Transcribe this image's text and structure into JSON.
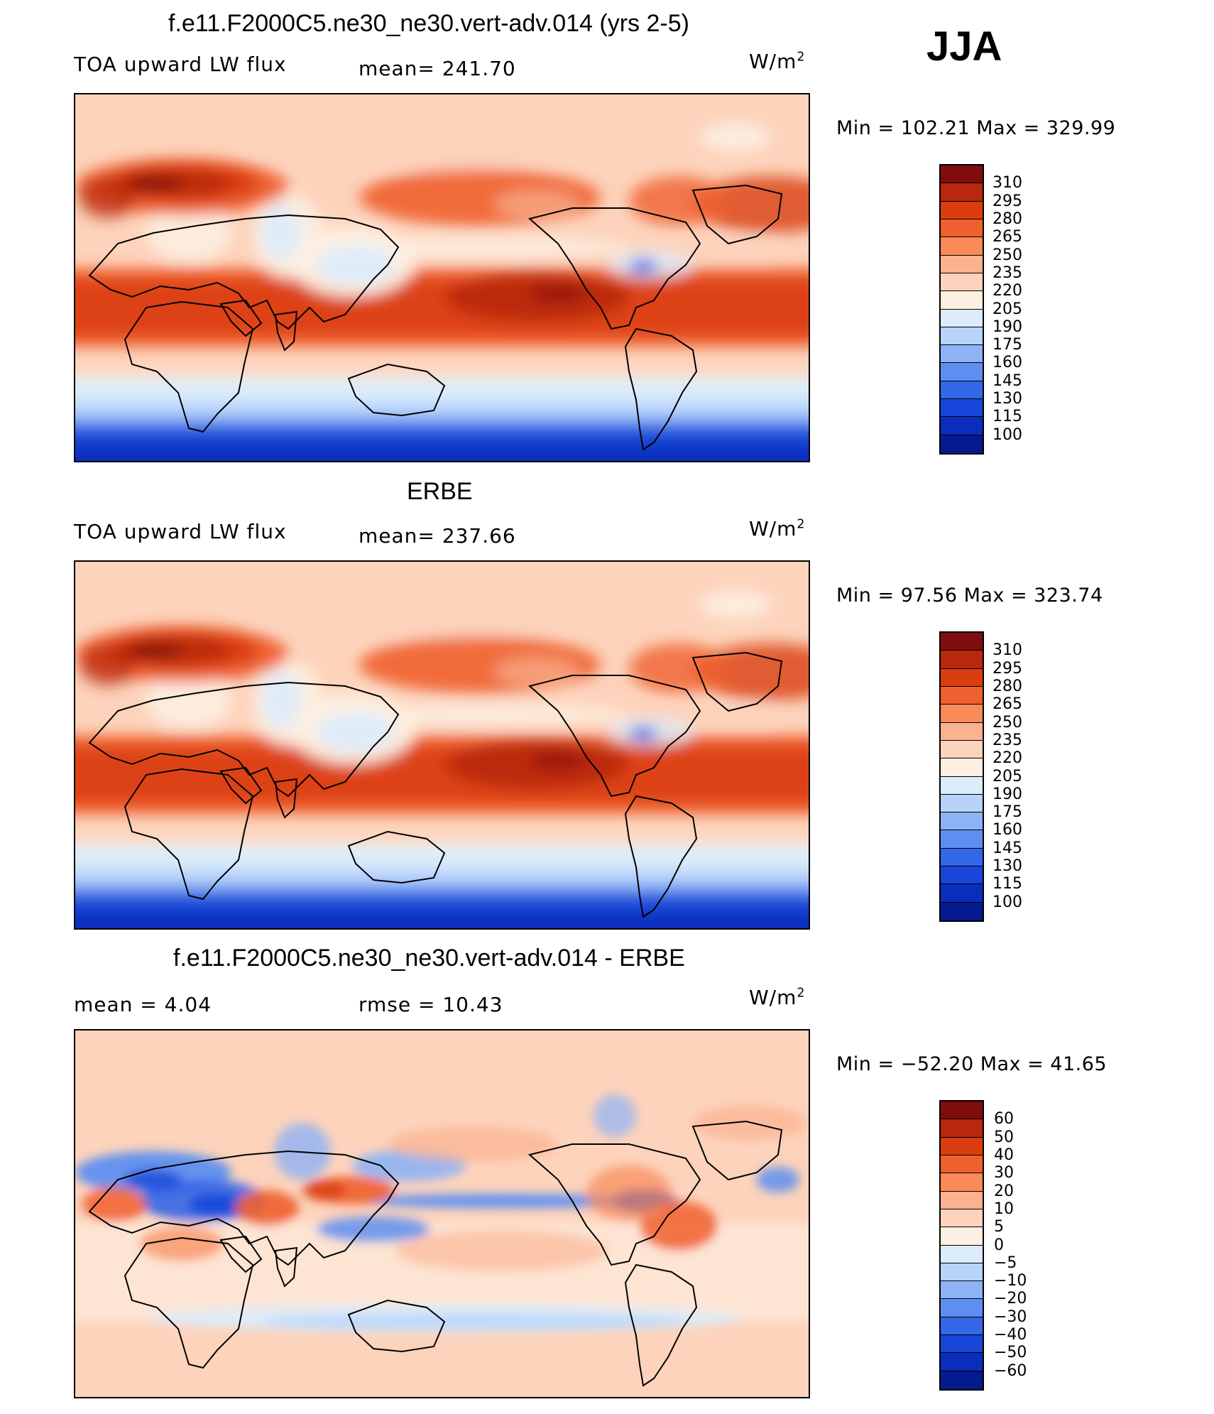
{
  "season": "JJA",
  "unit_main": "W/m",
  "unit_sup": "2",
  "panels": [
    {
      "title": "f.e11.F2000C5.ne30_ne30.vert-adv.014 (yrs 2-5)",
      "variable": "TOA upward LW flux",
      "stat": "mean=  241.70",
      "minmax": "Min  =  102.21  Max  =  329.99",
      "scale": "abs",
      "ticks": [
        "310",
        "295",
        "280",
        "265",
        "250",
        "235",
        "220",
        "205",
        "190",
        "175",
        "160",
        "145",
        "130",
        "115",
        "100"
      ],
      "colors": [
        "#7f0d0d",
        "#b8280d",
        "#d93d10",
        "#f0602e",
        "#fa8a58",
        "#fbb291",
        "#fdd3bb",
        "#fdf0e2",
        "#dcecfb",
        "#b7d3fa",
        "#8db3f6",
        "#5e8ff0",
        "#3466e8",
        "#1746d8",
        "#0b2dbd",
        "#061a8f"
      ]
    },
    {
      "title": "ERBE",
      "variable": "TOA upward LW flux",
      "stat": "mean=  237.66",
      "minmax": "Min  =   97.56  Max  =  323.74",
      "scale": "abs",
      "ticks": [
        "310",
        "295",
        "280",
        "265",
        "250",
        "235",
        "220",
        "205",
        "190",
        "175",
        "160",
        "145",
        "130",
        "115",
        "100"
      ],
      "colors": [
        "#7f0d0d",
        "#b8280d",
        "#d93d10",
        "#f0602e",
        "#fa8a58",
        "#fbb291",
        "#fdd3bb",
        "#fdf0e2",
        "#dcecfb",
        "#b7d3fa",
        "#8db3f6",
        "#5e8ff0",
        "#3466e8",
        "#1746d8",
        "#0b2dbd",
        "#061a8f"
      ]
    },
    {
      "title": "f.e11.F2000C5.ne30_ne30.vert-adv.014 - ERBE",
      "mean_label": "mean  =     4.04",
      "rmse_label": "rmse  =    10.43",
      "minmax": "Min  =  −52.20  Max  =    41.65",
      "scale": "diff",
      "ticks": [
        "60",
        "50",
        "40",
        "30",
        "20",
        "10",
        "5",
        "0",
        "−5",
        "−10",
        "−20",
        "−30",
        "−40",
        "−50",
        "−60"
      ],
      "colors": [
        "#7f0d0d",
        "#b8280d",
        "#d93d10",
        "#f0602e",
        "#fa8a58",
        "#fbb291",
        "#fdd3bb",
        "#fdf0e2",
        "#dcecfb",
        "#b7d3fa",
        "#8db3f6",
        "#5e8ff0",
        "#3466e8",
        "#1746d8",
        "#0b2dbd",
        "#061a8f"
      ]
    }
  ]
}
